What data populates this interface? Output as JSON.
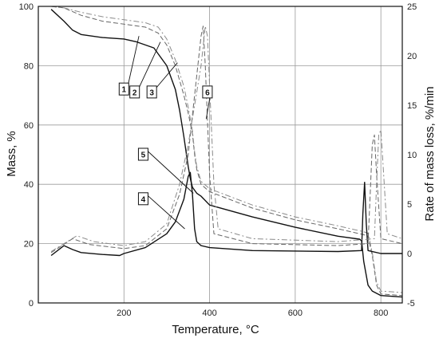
{
  "chart_data": {
    "type": "line",
    "xlabel": "Temperature, °C",
    "ylabel_left": "Mass, %",
    "ylabel_right": "Rate of mass loss, %/min",
    "xlim": [
      0,
      850
    ],
    "ylim_left": [
      0,
      100
    ],
    "ylim_right": [
      -5,
      25
    ],
    "x_ticks": [
      200,
      400,
      600,
      800
    ],
    "y_left_ticks": [
      0,
      20,
      40,
      60,
      80,
      100
    ],
    "y_right_ticks": [
      -5,
      0,
      5,
      10,
      15,
      20,
      25
    ],
    "grid": true,
    "series": [
      {
        "axis": "left",
        "style": "solid",
        "x": [
          30,
          60,
          80,
          100,
          150,
          200,
          230,
          270,
          300,
          320,
          330,
          340,
          350,
          355,
          360,
          370,
          380,
          400,
          500,
          600,
          700,
          750,
          755,
          760,
          770,
          780,
          800,
          850
        ],
        "values": [
          99,
          95,
          92,
          90.5,
          89.5,
          89,
          88,
          86,
          80,
          72,
          65,
          56,
          46,
          42,
          39,
          37,
          36,
          33,
          29,
          25.5,
          22.5,
          21.5,
          21,
          14,
          6,
          4,
          2.5,
          2
        ]
      },
      {
        "axis": "left",
        "style": "dashed",
        "x": [
          30,
          60,
          100,
          150,
          200,
          250,
          280,
          300,
          320,
          340,
          350,
          360,
          365,
          370,
          380,
          400,
          500,
          600,
          700,
          760,
          770,
          780,
          790,
          800,
          850
        ],
        "values": [
          100,
          99.5,
          97,
          95,
          94,
          93,
          91,
          87,
          80,
          70,
          64,
          57,
          50,
          45,
          40,
          37.5,
          32,
          28,
          25,
          23,
          22.5,
          16,
          6,
          3,
          2.5
        ]
      },
      {
        "axis": "left",
        "style": "dashdot",
        "x": [
          30,
          60,
          100,
          150,
          200,
          250,
          280,
          300,
          320,
          340,
          350,
          360,
          365,
          370,
          380,
          400,
          500,
          600,
          700,
          760,
          770,
          780,
          790,
          800,
          850
        ],
        "values": [
          100,
          99.5,
          98,
          96.5,
          95.5,
          94.5,
          93,
          89,
          82,
          73,
          66,
          58,
          51,
          46,
          41,
          38.5,
          33,
          29,
          26,
          24,
          23.5,
          17,
          7,
          4,
          3.5
        ]
      },
      {
        "axis": "right",
        "style": "solid",
        "x": [
          30,
          60,
          80,
          100,
          150,
          190,
          200,
          250,
          300,
          320,
          340,
          350,
          355,
          360,
          365,
          370,
          380,
          400,
          500,
          700,
          755,
          758,
          762,
          766,
          770,
          800,
          850
        ],
        "values": [
          -0.2,
          0.8,
          0.4,
          0.1,
          -0.1,
          -0.2,
          0,
          0.6,
          2,
          3.2,
          5.5,
          7.8,
          8.2,
          6,
          2.5,
          1.2,
          0.8,
          0.6,
          0.3,
          0.2,
          0.3,
          4,
          7.2,
          3,
          0.3,
          0,
          0
        ]
      },
      {
        "axis": "right",
        "style": "dashed",
        "x": [
          30,
          80,
          120,
          200,
          250,
          300,
          330,
          350,
          360,
          370,
          380,
          385,
          390,
          400,
          410,
          500,
          700,
          770,
          775,
          780,
          785,
          790,
          800,
          850
        ],
        "values": [
          0.1,
          1.5,
          0.9,
          0.5,
          0.8,
          2.5,
          6,
          10,
          14,
          18,
          22,
          23,
          19,
          8,
          2,
          1,
          0.8,
          1,
          6,
          11,
          12,
          8,
          1.5,
          1
        ]
      },
      {
        "axis": "right",
        "style": "dashdot",
        "x": [
          30,
          90,
          130,
          200,
          250,
          300,
          330,
          350,
          365,
          380,
          390,
          395,
          400,
          410,
          420,
          500,
          700,
          785,
          790,
          795,
          800,
          805,
          815,
          850
        ],
        "values": [
          0.2,
          1.8,
          1.2,
          0.8,
          1.2,
          3,
          7,
          11,
          15,
          19,
          23,
          22,
          17,
          7,
          2.5,
          1.5,
          1.2,
          1.5,
          7,
          12,
          12.5,
          9,
          2,
          1.5
        ]
      }
    ],
    "callouts": [
      {
        "label": "1",
        "box_x": 200,
        "box_y": 72,
        "tip_x": 235,
        "tip_y": 90
      },
      {
        "label": "2",
        "box_x": 225,
        "box_y": 71,
        "tip_x": 285,
        "tip_y": 88
      },
      {
        "label": "3",
        "box_x": 265,
        "box_y": 71,
        "tip_x": 325,
        "tip_y": 81
      },
      {
        "label": "4",
        "box_x": 245,
        "box_y": 35,
        "tip_x": 342,
        "tip_y": 25
      },
      {
        "label": "5",
        "box_x": 245,
        "box_y": 50,
        "tip_x": 362,
        "tip_y": 37
      },
      {
        "label": "6",
        "box_x": 395,
        "box_y": 71,
        "tip_x": 392,
        "tip_y": 62
      }
    ]
  }
}
